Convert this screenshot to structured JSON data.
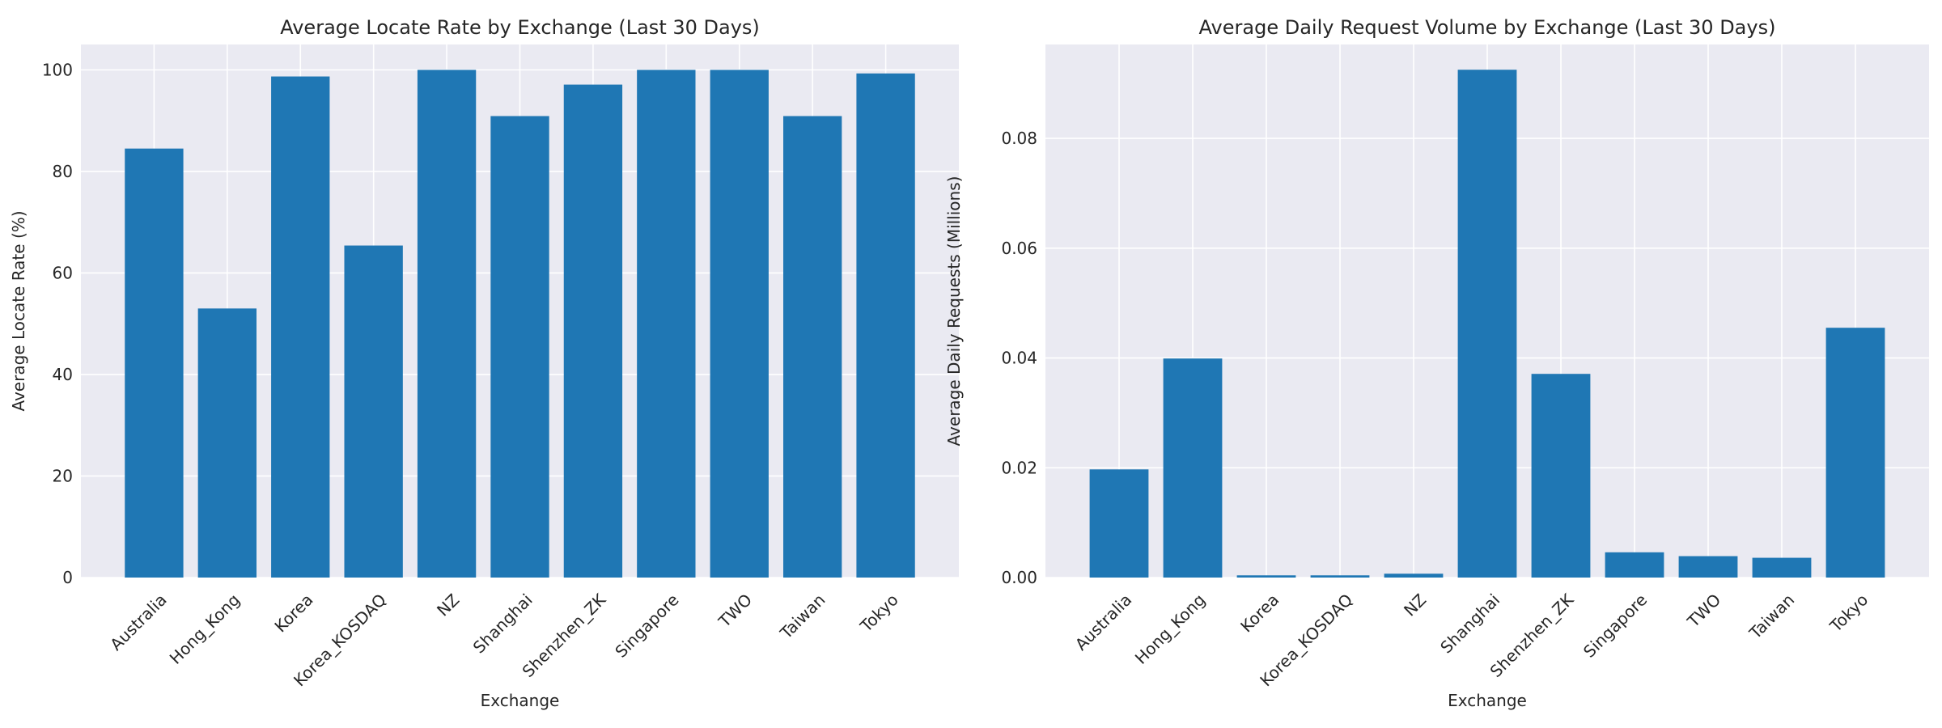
{
  "chart_data": [
    {
      "type": "bar",
      "title": "Average Locate Rate by Exchange (Last 30 Days)",
      "xlabel": "Exchange",
      "ylabel": "Average Locate Rate (%)",
      "categories": [
        "Australia",
        "Hong_Kong",
        "Korea",
        "Korea_KOSDAQ",
        "NZ",
        "Shanghai",
        "Shenzhen_ZK",
        "Singapore",
        "TWO",
        "Taiwan",
        "Tokyo"
      ],
      "values": [
        84.5,
        53.0,
        98.7,
        65.4,
        100.0,
        90.9,
        97.1,
        100.0,
        100.0,
        90.9,
        99.3
      ],
      "yticks": [
        "0",
        "20",
        "40",
        "60",
        "80",
        "100"
      ],
      "ytick_values": [
        0,
        20,
        40,
        60,
        80,
        100
      ],
      "ylim": [
        0,
        105
      ],
      "grid": true,
      "bar_color": "#1f77b4"
    },
    {
      "type": "bar",
      "title": "Average Daily Request Volume by Exchange (Last 30 Days)",
      "xlabel": "Exchange",
      "ylabel": "Average Daily Requests (Millions)",
      "categories": [
        "Australia",
        "Hong_Kong",
        "Korea",
        "Korea_KOSDAQ",
        "NZ",
        "Shanghai",
        "Shenzhen_ZK",
        "Singapore",
        "TWO",
        "Taiwan",
        "Tokyo"
      ],
      "values": [
        0.0197,
        0.0399,
        0.0004,
        0.0004,
        0.0007,
        0.0925,
        0.0371,
        0.0046,
        0.0039,
        0.0036,
        0.0455
      ],
      "yticks": [
        "0.00",
        "0.02",
        "0.04",
        "0.06",
        "0.08"
      ],
      "ytick_values": [
        0,
        0.02,
        0.04,
        0.06,
        0.08
      ],
      "ylim": [
        0,
        0.0971
      ],
      "grid": true,
      "bar_color": "#1f77b4"
    }
  ]
}
